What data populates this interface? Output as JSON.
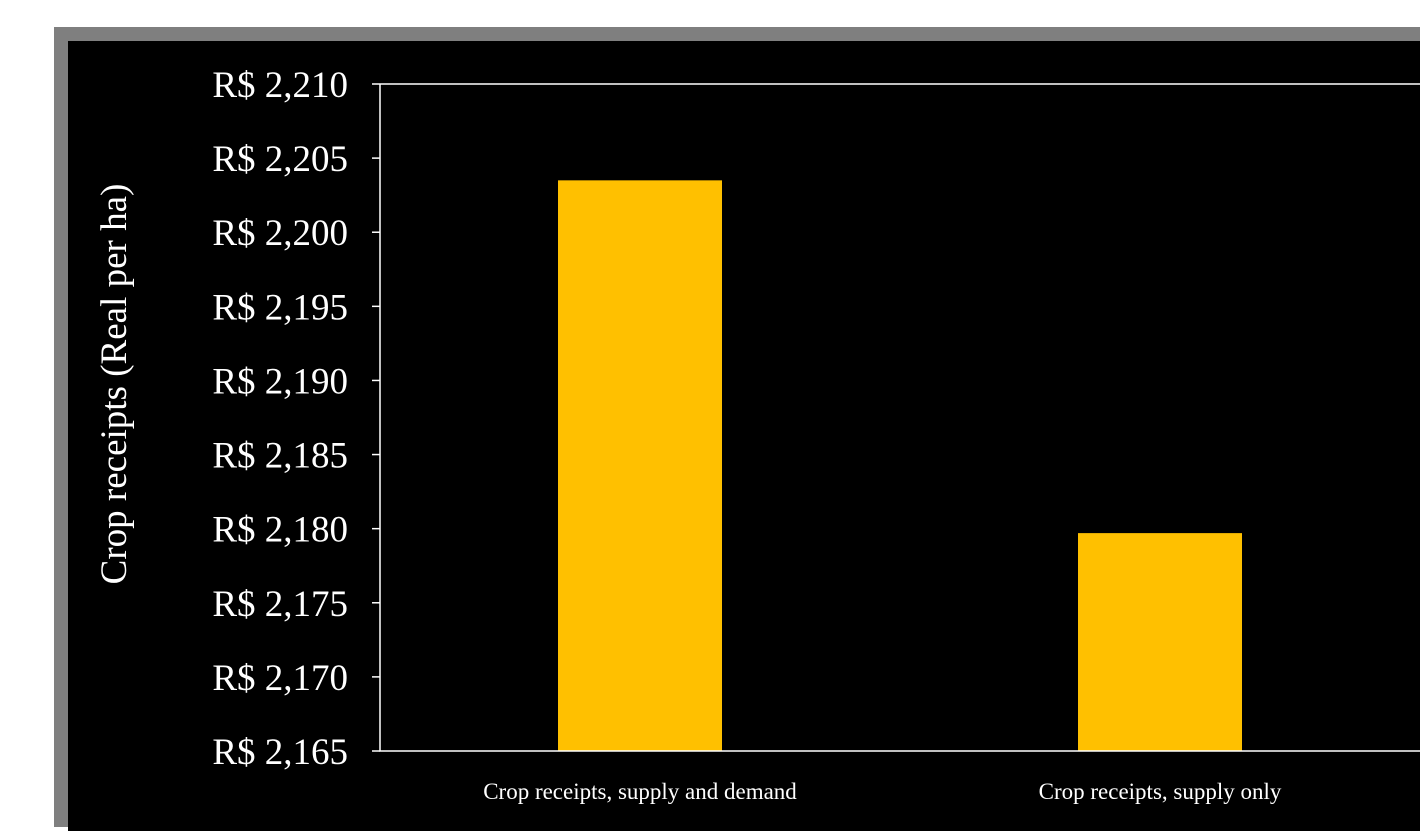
{
  "chart_data": {
    "type": "bar",
    "title": "",
    "xlabel": "",
    "ylabel": "Crop receipts (Real per ha)",
    "categories": [
      "Crop receipts, supply and demand",
      "Crop receipts, supply only"
    ],
    "values": [
      2203.5,
      2179.7
    ],
    "ylim": [
      2165,
      2210
    ],
    "yticks": [
      2210,
      2205,
      2200,
      2195,
      2190,
      2185,
      2180,
      2175,
      2170,
      2165
    ],
    "ytick_labels": [
      "R$ 2,210",
      "R$ 2,205",
      "R$ 2,200",
      "R$ 2,195",
      "R$ 2,190",
      "R$ 2,185",
      "R$ 2,180",
      "R$ 2,175",
      "R$ 2,170",
      "R$ 2,165"
    ],
    "grid": false,
    "legend": "none",
    "colors": {
      "bar": "#ffc000",
      "background": "#000000",
      "frame": "#7f7f7f",
      "axis": "#ffffff",
      "text": "#ffffff"
    }
  }
}
